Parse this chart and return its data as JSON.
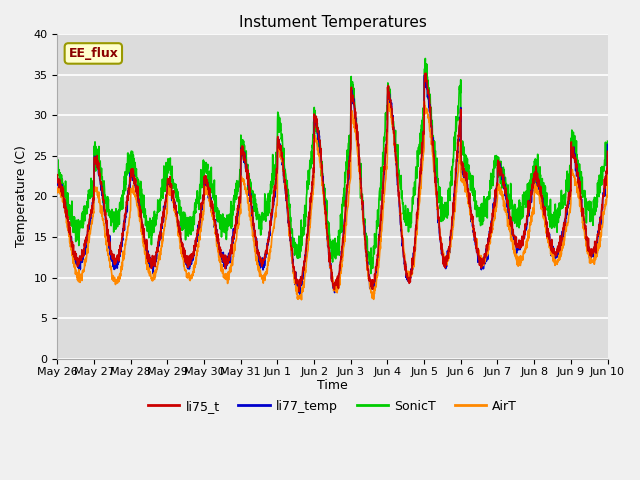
{
  "title": "Instument Temperatures",
  "xlabel": "Time",
  "ylabel": "Temperature (C)",
  "ylim": [
    0,
    40
  ],
  "yticks": [
    0,
    5,
    10,
    15,
    20,
    25,
    30,
    35,
    40
  ],
  "annotation_text": "EE_flux",
  "bg_color": "#dcdcdc",
  "fig_bg_color": "#f0f0f0",
  "line_colors": {
    "li75_t": "#cc0000",
    "li77_temp": "#0000cc",
    "SonicT": "#00cc00",
    "AirT": "#ff8800"
  },
  "legend_labels": [
    "li75_t",
    "li77_temp",
    "SonicT",
    "AirT"
  ],
  "x_tick_labels": [
    "May 26",
    "May 27",
    "May 28",
    "May 29",
    "May 30",
    "May 31",
    "Jun 1",
    "Jun 2",
    "Jun 3",
    "Jun 4",
    "Jun 5",
    "Jun 6",
    "Jun 7",
    "Jun 8",
    "Jun 9",
    "Jun 10"
  ],
  "num_days": 15,
  "pts_per_day": 144
}
